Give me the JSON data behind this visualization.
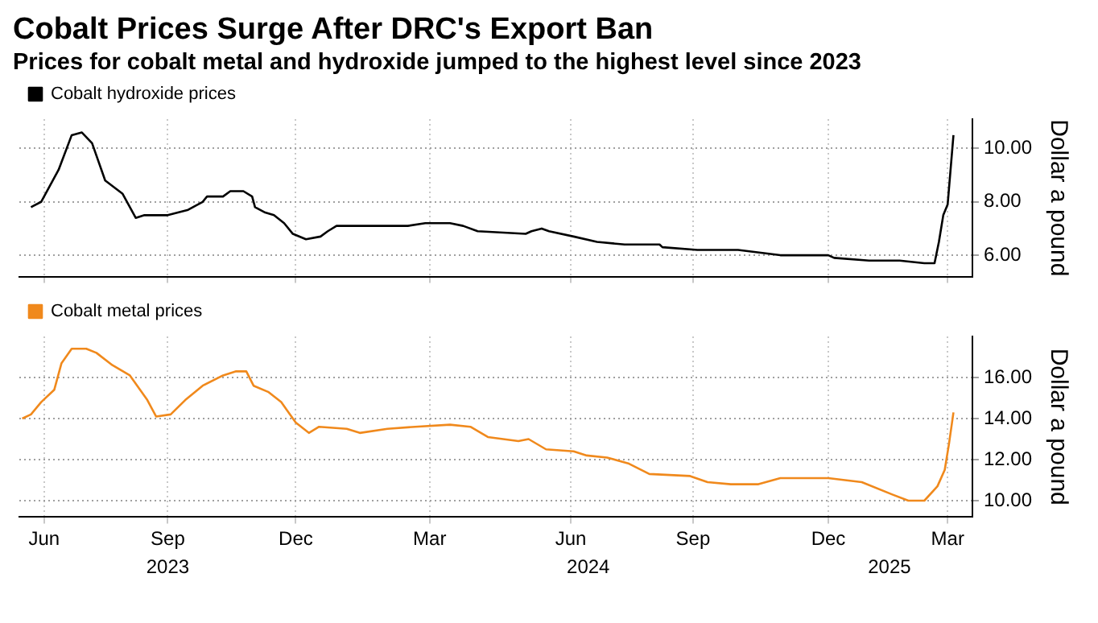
{
  "chart_data": [
    {
      "type": "line",
      "title": "Cobalt Prices Surge After DRC's Export Ban",
      "subtitle": "Prices for cobalt metal and hydroxide jumped to the highest level since 2023",
      "x": [
        "2023-06-18",
        "2023-06-25",
        "2023-07-07",
        "2023-07-16",
        "2023-07-23",
        "2023-07-30",
        "2023-08-08",
        "2023-08-20",
        "2023-08-29",
        "2023-09-04",
        "2023-09-20",
        "2023-09-27",
        "2023-10-04",
        "2023-10-14",
        "2023-10-17",
        "2023-10-28",
        "2023-11-02",
        "2023-11-11",
        "2023-11-17",
        "2023-11-19",
        "2023-11-26",
        "2023-12-02",
        "2023-12-09",
        "2023-12-15",
        "2023-12-24",
        "2024-01-03",
        "2024-01-08",
        "2024-01-14",
        "2024-01-21",
        "2024-03-03",
        "2024-03-15",
        "2024-04-01",
        "2024-04-10",
        "2024-04-20",
        "2024-05-23",
        "2024-05-27",
        "2024-06-03",
        "2024-06-08",
        "2024-06-25",
        "2024-07-11",
        "2024-07-30",
        "2024-08-23",
        "2024-08-25",
        "2024-09-18",
        "2024-10-16",
        "2024-11-14",
        "2024-12-17",
        "2024-12-21",
        "2025-01-14",
        "2025-02-04",
        "2025-02-21",
        "2025-02-28",
        "2025-03-03",
        "2025-03-06",
        "2025-03-09",
        "2025-03-13"
      ],
      "series": [
        {
          "name": "Cobalt hydroxide prices",
          "color": "#000000",
          "values": [
            7.8,
            8.0,
            9.2,
            10.5,
            10.6,
            10.2,
            8.8,
            8.3,
            7.4,
            7.5,
            7.5,
            7.6,
            7.7,
            8.0,
            8.2,
            8.2,
            8.4,
            8.4,
            8.2,
            7.8,
            7.6,
            7.5,
            7.2,
            6.8,
            6.6,
            6.7,
            6.9,
            7.1,
            7.1,
            7.1,
            7.2,
            7.2,
            7.1,
            6.9,
            6.8,
            6.9,
            7.0,
            6.9,
            6.7,
            6.5,
            6.4,
            6.4,
            6.3,
            6.2,
            6.2,
            6.0,
            6.0,
            5.9,
            5.8,
            5.8,
            5.7,
            5.7,
            6.5,
            7.5,
            7.9,
            10.5
          ]
        }
      ],
      "xlim": [
        "2023-06-10",
        "2025-03-26"
      ],
      "xticks": [
        {
          "value": "2023-06-27",
          "label": null
        },
        {
          "value": "2023-09-20",
          "label": null
        },
        {
          "value": "2023-12-17",
          "label": null
        },
        {
          "value": "2024-03-18",
          "label": null
        },
        {
          "value": "2024-06-23",
          "label": null
        },
        {
          "value": "2024-09-15",
          "label": null
        },
        {
          "value": "2024-12-17",
          "label": null
        },
        {
          "value": "2025-03-09",
          "label": null
        }
      ],
      "ylim": [
        5.2,
        11.1
      ],
      "yticks": [
        {
          "value": 6,
          "label": "6.00"
        },
        {
          "value": 8,
          "label": "8.00"
        },
        {
          "value": 10,
          "label": "10.00"
        }
      ],
      "ylabel": "Dollar a pound",
      "grid": true,
      "legend": "top left",
      "tick_labels": "y"
    },
    {
      "type": "line",
      "x": [
        "2023-06-12",
        "2023-06-18",
        "2023-06-25",
        "2023-07-04",
        "2023-07-09",
        "2023-07-16",
        "2023-07-26",
        "2023-08-02",
        "2023-08-13",
        "2023-08-25",
        "2023-09-06",
        "2023-09-12",
        "2023-09-22",
        "2023-10-02",
        "2023-10-14",
        "2023-10-28",
        "2023-11-06",
        "2023-11-13",
        "2023-11-18",
        "2023-11-28",
        "2023-12-07",
        "2023-12-17",
        "2023-12-26",
        "2024-01-02",
        "2024-01-21",
        "2024-01-30",
        "2024-02-18",
        "2024-03-08",
        "2024-04-01",
        "2024-04-15",
        "2024-04-27",
        "2024-05-18",
        "2024-05-25",
        "2024-06-06",
        "2024-06-25",
        "2024-07-04",
        "2024-07-18",
        "2024-08-02",
        "2024-08-16",
        "2024-09-13",
        "2024-09-25",
        "2024-10-11",
        "2024-10-30",
        "2024-11-14",
        "2024-12-17",
        "2025-01-09",
        "2025-01-30",
        "2025-02-10",
        "2025-02-21",
        "2025-03-02",
        "2025-03-07",
        "2025-03-10",
        "2025-03-13"
      ],
      "series": [
        {
          "name": "Cobalt metal prices",
          "color": "#f0891c",
          "values": [
            14.0,
            14.2,
            14.8,
            15.4,
            16.7,
            17.4,
            17.4,
            17.2,
            16.6,
            16.1,
            14.9,
            14.1,
            14.2,
            14.9,
            15.6,
            16.1,
            16.3,
            16.3,
            15.6,
            15.3,
            14.8,
            13.8,
            13.3,
            13.6,
            13.5,
            13.3,
            13.5,
            13.6,
            13.7,
            13.6,
            13.1,
            12.9,
            13.0,
            12.5,
            12.4,
            12.2,
            12.1,
            11.8,
            11.3,
            11.2,
            10.9,
            10.8,
            10.8,
            11.1,
            11.1,
            10.9,
            10.3,
            10.0,
            10.0,
            10.7,
            11.5,
            12.8,
            14.3
          ]
        }
      ],
      "xlim": [
        "2023-06-10",
        "2025-03-26"
      ],
      "xticks": [
        {
          "value": "2023-06-27",
          "label": "Jun"
        },
        {
          "value": "2023-09-20",
          "label": "Sep"
        },
        {
          "value": "2023-12-17",
          "label": "Dec"
        },
        {
          "value": "2024-03-18",
          "label": "Mar"
        },
        {
          "value": "2024-06-23",
          "label": "Jun"
        },
        {
          "value": "2024-09-15",
          "label": "Sep"
        },
        {
          "value": "2024-12-17",
          "label": "Dec"
        },
        {
          "value": "2025-03-09",
          "label": "Mar"
        }
      ],
      "x2lim": [
        "2023-06-10",
        "2025-03-26"
      ],
      "x2ticks": [
        {
          "value": "2023-09-20",
          "label": "2023"
        },
        {
          "value": "2024-07-05",
          "label": "2024"
        },
        {
          "value": "2025-01-28",
          "label": "2025"
        }
      ],
      "ylim": [
        9.2,
        18
      ],
      "yticks": [
        {
          "value": 10,
          "label": "10.00"
        },
        {
          "value": 12,
          "label": "12.00"
        },
        {
          "value": 14,
          "label": "14.00"
        },
        {
          "value": 16,
          "label": "16.00"
        }
      ],
      "ylabel": "Dollar a pound",
      "grid": true,
      "legend": "top left"
    }
  ]
}
